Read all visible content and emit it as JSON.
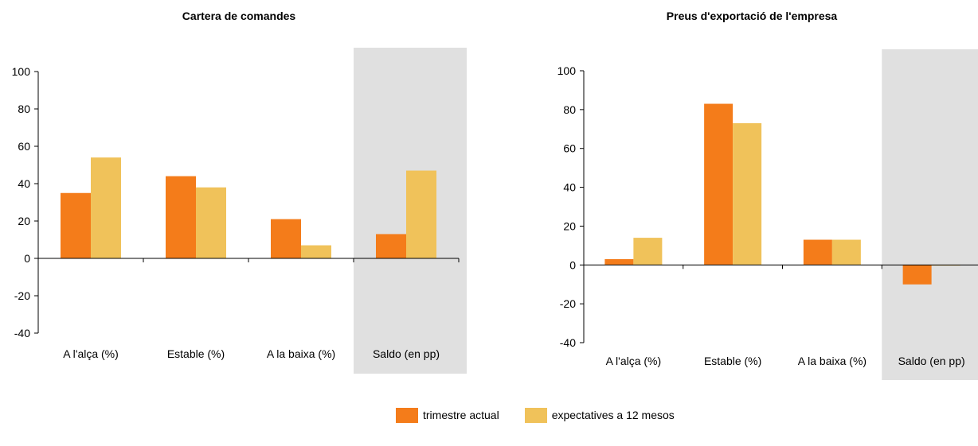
{
  "colors": {
    "current": "#F47C1A",
    "expected": "#F0C25A",
    "highlight": "#E0E0E0",
    "axis": "#000000"
  },
  "legend": {
    "current_label": "trimestre actual",
    "expected_label": "expectatives a 12 mesos"
  },
  "chart_data": [
    {
      "type": "bar",
      "title": "Cartera de comandes",
      "categories": [
        "A l'alça (%)",
        "Estable (%)",
        "A la baixa (%)",
        "Saldo (en pp)"
      ],
      "series": [
        {
          "name": "trimestre actual",
          "values": [
            35,
            44,
            21,
            13
          ]
        },
        {
          "name": "expectatives a 12 mesos",
          "values": [
            54,
            38,
            7,
            47
          ]
        }
      ],
      "ylim": [
        -40,
        100
      ],
      "yticks": [
        -40,
        -20,
        0,
        20,
        40,
        60,
        80,
        100
      ],
      "highlighted_category": "Saldo (en pp)",
      "grid": false
    },
    {
      "type": "bar",
      "title": "Preus d'exportació de l'empresa",
      "categories": [
        "A l'alça (%)",
        "Estable (%)",
        "A la baixa (%)",
        "Saldo (en pp)"
      ],
      "series": [
        {
          "name": "trimestre actual",
          "values": [
            3,
            83,
            13,
            -10
          ]
        },
        {
          "name": "expectatives a 12 mesos",
          "values": [
            14,
            73,
            13,
            0
          ]
        }
      ],
      "ylim": [
        -40,
        100
      ],
      "yticks": [
        -40,
        -20,
        0,
        20,
        40,
        60,
        80,
        100
      ],
      "highlighted_category": "Saldo (en pp)",
      "grid": false
    }
  ]
}
